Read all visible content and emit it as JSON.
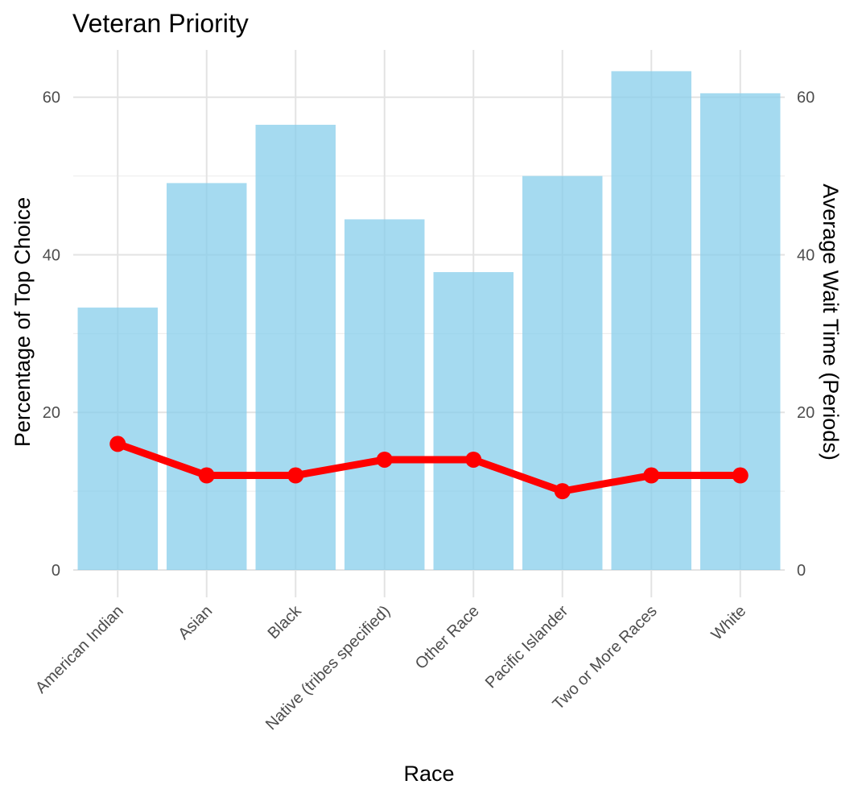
{
  "chart_data": {
    "type": "bar",
    "title": "Veteran Priority",
    "xlabel": "Race",
    "ylabel": "Percentage of Top Choice",
    "y2label": "Average Wait Time (Periods)",
    "categories": [
      "American Indian",
      "Asian",
      "Black",
      "Native (tribes specified)",
      "Other Race",
      "Pacific Islander",
      "Two or More Races",
      "White"
    ],
    "ylim": [
      0,
      66
    ],
    "yticks": [
      0,
      20,
      40,
      60
    ],
    "y2ticks": [
      0,
      20,
      40,
      60
    ],
    "grid": true,
    "series": [
      {
        "type": "bar",
        "axis": "left",
        "color": "#87ceeb",
        "values": [
          33.3,
          49.1,
          56.5,
          44.5,
          37.8,
          50.0,
          63.3,
          60.5
        ]
      },
      {
        "type": "line",
        "axis": "right",
        "color": "#ff0000",
        "values": [
          16,
          12,
          12,
          14,
          14,
          10,
          12,
          12
        ]
      }
    ]
  }
}
